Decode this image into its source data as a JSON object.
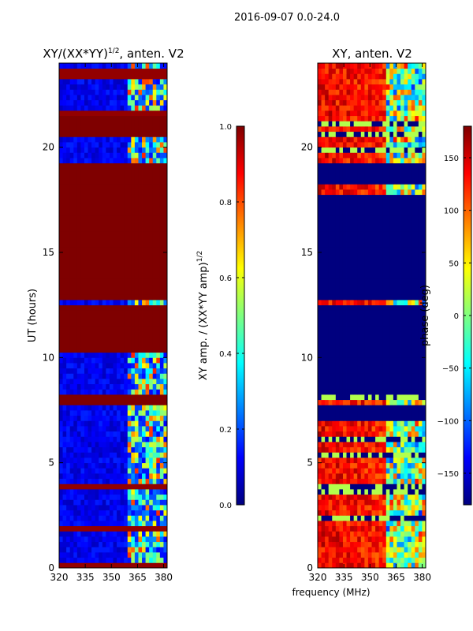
{
  "suptitle": "2016-09-07 0.0-24.0",
  "xlabel_shared": "frequency (MHz)",
  "colors": {
    "jet": [
      "#00007f",
      "#0000ff",
      "#007fff",
      "#00ffff",
      "#7fff7f",
      "#ffff00",
      "#ff7f00",
      "#ff0000",
      "#7f0000"
    ],
    "frame": "#000000",
    "flag": "#00007f"
  },
  "chart_data": [
    {
      "type": "heatmap",
      "title_base": "XY/(XX*YY)",
      "title_sup": "1/2",
      "title_suffix": ", anten. V2",
      "xlabel": "",
      "ylabel": "UT (hours)",
      "xlim": [
        320,
        382
      ],
      "ylim": [
        0,
        24
      ],
      "xticks": [
        320,
        335,
        350,
        365,
        380
      ],
      "yticks": [
        0,
        5,
        10,
        15,
        20
      ],
      "value_range": [
        0.0,
        1.0
      ],
      "rfi_band_mhz": [
        360,
        381
      ],
      "saturated_intervals_hours": [
        [
          7.8,
          8.3
        ],
        [
          10.3,
          12.6
        ],
        [
          12.8,
          19.2
        ],
        [
          20.6,
          21.4
        ]
      ],
      "colorbar": {
        "label_base": "XY amp. / (XX*YY amp)",
        "label_sup": "1/2",
        "ticks": [
          0.0,
          0.2,
          0.4,
          0.6,
          0.8,
          1.0
        ],
        "tick_labels": [
          "0.0",
          "0.2",
          "0.4",
          "0.6",
          "0.8",
          "1.0"
        ]
      }
    },
    {
      "type": "heatmap",
      "title": "XY, anten. V2",
      "xlabel": "frequency (MHz)",
      "ylabel": "",
      "xlim": [
        320,
        382
      ],
      "ylim": [
        0,
        24
      ],
      "xticks": [
        320,
        335,
        350,
        365,
        380
      ],
      "yticks": [
        0,
        5,
        10,
        15,
        20
      ],
      "value_range": [
        -180,
        180
      ],
      "flagged_intervals_hours": [
        [
          7.0,
          7.8
        ],
        [
          8.3,
          12.6
        ],
        [
          12.8,
          17.8
        ],
        [
          18.2,
          19.2
        ]
      ],
      "colorbar": {
        "label": "phase (deg)",
        "ticks": [
          150,
          100,
          50,
          0,
          -50,
          -100,
          -150
        ],
        "tick_labels": [
          "150",
          "100",
          "50",
          "0",
          "−50",
          "−100",
          "−150"
        ]
      }
    }
  ]
}
